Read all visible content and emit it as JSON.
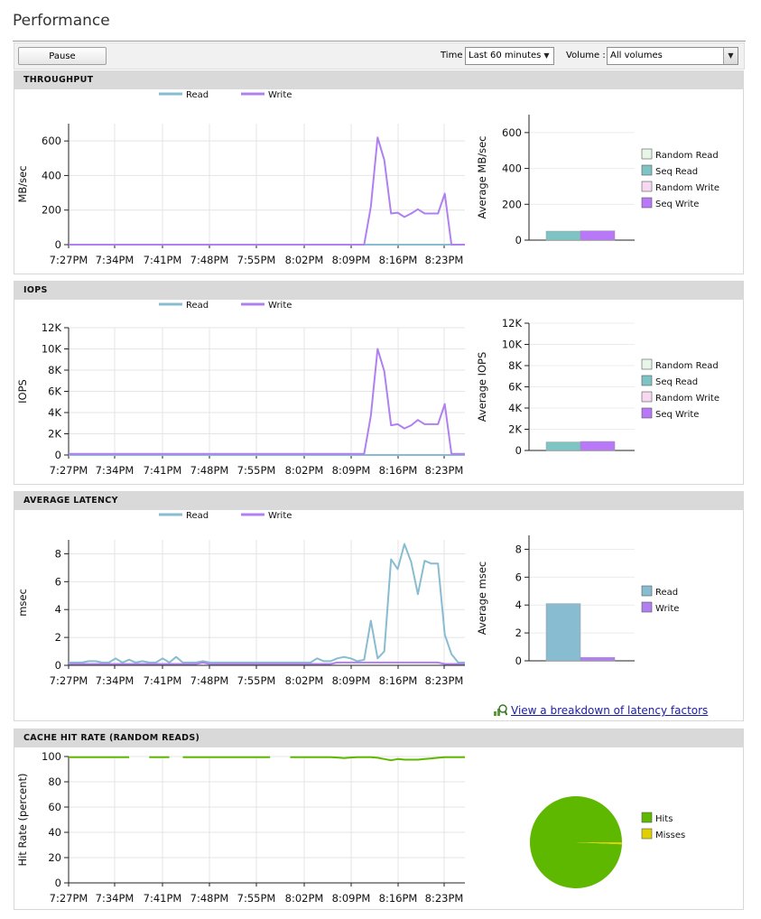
{
  "page_title": "Performance",
  "toolbar": {
    "pause_label": "Pause",
    "time_label": "Time",
    "time_value": "Last 60 minutes",
    "volume_label": "Volume :",
    "volume_value": "All volumes"
  },
  "x_ticks": [
    "7:27PM",
    "7:34PM",
    "7:41PM",
    "7:48PM",
    "7:55PM",
    "8:02PM",
    "8:09PM",
    "8:16PM",
    "8:23PM"
  ],
  "colors": {
    "read": "#88bcd0",
    "write": "#b080f0",
    "random_read": "#e8f6e8",
    "seq_read": "#7fc4c4",
    "random_write": "#f6d8f0",
    "seq_write": "#b878f8",
    "hits": "#5fb800",
    "misses": "#e0d000"
  },
  "breakdown_link": "View a breakdown of latency factors",
  "chart_data": [
    {
      "type": "line",
      "panel_title": "THROUGHPUT",
      "ylabel": "MB/sec",
      "ylim": [
        0,
        700
      ],
      "yticks": [
        0,
        200,
        400,
        600
      ],
      "ytick_labels": [
        "0",
        "200",
        "400",
        "600"
      ],
      "series": [
        {
          "name": "Read",
          "values": [
            0,
            0,
            0,
            0,
            0,
            0,
            0,
            0,
            0,
            0,
            0,
            0,
            0,
            0,
            0,
            0,
            0,
            0,
            0,
            0,
            0,
            0,
            0,
            0,
            0,
            0,
            0,
            0,
            0,
            0,
            0,
            0,
            0,
            0,
            0,
            0,
            0,
            0,
            0,
            0,
            0,
            0,
            0,
            0,
            0,
            0,
            0,
            0,
            0,
            0,
            0,
            0,
            0,
            0,
            0,
            0,
            0,
            0,
            0,
            0
          ]
        },
        {
          "name": "Write",
          "values": [
            0,
            0,
            0,
            0,
            0,
            0,
            0,
            0,
            0,
            0,
            0,
            0,
            0,
            0,
            0,
            0,
            0,
            0,
            0,
            0,
            0,
            0,
            0,
            0,
            0,
            0,
            0,
            0,
            0,
            0,
            0,
            0,
            0,
            0,
            0,
            0,
            0,
            0,
            0,
            0,
            0,
            0,
            0,
            0,
            0,
            220,
            620,
            490,
            180,
            185,
            160,
            180,
            205,
            180,
            180,
            180,
            295,
            0,
            0,
            0
          ]
        }
      ],
      "bar": {
        "ylabel": "Average MB/sec",
        "ylim": [
          0,
          700
        ],
        "yticks": [
          0,
          200,
          400,
          600
        ],
        "ytick_labels": [
          "0",
          "200",
          "400",
          "600"
        ],
        "bars": [
          {
            "key": "seq_read",
            "value": 50
          },
          {
            "key": "seq_write",
            "value": 52
          }
        ],
        "legend": [
          {
            "key": "random_read",
            "label": "Random Read"
          },
          {
            "key": "seq_read",
            "label": "Seq Read"
          },
          {
            "key": "random_write",
            "label": "Random Write"
          },
          {
            "key": "seq_write",
            "label": "Seq Write"
          }
        ]
      }
    },
    {
      "type": "line",
      "panel_title": "IOPS",
      "ylabel": "IOPS",
      "ylim": [
        0,
        12000
      ],
      "yticks": [
        0,
        2000,
        4000,
        6000,
        8000,
        10000,
        12000
      ],
      "ytick_labels": [
        "0",
        "2K",
        "4K",
        "6K",
        "8K",
        "10K",
        "12K"
      ],
      "series": [
        {
          "name": "Read",
          "values": [
            0,
            0,
            0,
            0,
            0,
            0,
            0,
            0,
            0,
            0,
            0,
            0,
            0,
            0,
            0,
            0,
            0,
            0,
            0,
            0,
            0,
            0,
            0,
            0,
            0,
            0,
            0,
            0,
            0,
            0,
            0,
            0,
            0,
            0,
            0,
            0,
            0,
            0,
            0,
            0,
            0,
            0,
            0,
            0,
            0,
            0,
            0,
            0,
            0,
            0,
            0,
            0,
            0,
            0,
            0,
            0,
            0,
            0,
            0,
            0
          ]
        },
        {
          "name": "Write",
          "values": [
            100,
            100,
            100,
            100,
            100,
            100,
            100,
            100,
            100,
            100,
            100,
            100,
            100,
            100,
            100,
            100,
            100,
            100,
            100,
            100,
            100,
            100,
            100,
            100,
            100,
            100,
            100,
            100,
            100,
            100,
            100,
            100,
            100,
            100,
            100,
            100,
            100,
            100,
            100,
            100,
            100,
            100,
            100,
            100,
            100,
            3700,
            10000,
            7900,
            2800,
            2900,
            2500,
            2800,
            3300,
            2900,
            2900,
            2900,
            4800,
            100,
            100,
            100
          ]
        }
      ],
      "bar": {
        "ylabel": "Average IOPS",
        "ylim": [
          0,
          12000
        ],
        "yticks": [
          0,
          2000,
          4000,
          6000,
          8000,
          10000,
          12000
        ],
        "ytick_labels": [
          "0",
          "2K",
          "4K",
          "6K",
          "8K",
          "10K",
          "12K"
        ],
        "bars": [
          {
            "key": "seq_read",
            "value": 800
          },
          {
            "key": "seq_write",
            "value": 850
          }
        ],
        "legend": [
          {
            "key": "random_read",
            "label": "Random Read"
          },
          {
            "key": "seq_read",
            "label": "Seq Read"
          },
          {
            "key": "random_write",
            "label": "Random Write"
          },
          {
            "key": "seq_write",
            "label": "Seq Write"
          }
        ]
      }
    },
    {
      "type": "line",
      "panel_title": "AVERAGE LATENCY",
      "ylabel": "msec",
      "ylim": [
        0,
        9
      ],
      "yticks": [
        0,
        2,
        4,
        6,
        8
      ],
      "ytick_labels": [
        "0",
        "2",
        "4",
        "6",
        "8"
      ],
      "series": [
        {
          "name": "Read",
          "values": [
            0.2,
            0.2,
            0.2,
            0.3,
            0.3,
            0.2,
            0.2,
            0.5,
            0.2,
            0.4,
            0.2,
            0.3,
            0.2,
            0.2,
            0.5,
            0.2,
            0.6,
            0.2,
            0.2,
            0.2,
            0.3,
            0.2,
            0.2,
            0.2,
            0.2,
            0.2,
            0.2,
            0.2,
            0.2,
            0.2,
            0.2,
            0.2,
            0.2,
            0.2,
            0.2,
            0.2,
            0.2,
            0.5,
            0.3,
            0.3,
            0.5,
            0.6,
            0.5,
            0.3,
            0.4,
            3.2,
            0.5,
            1.0,
            7.6,
            6.9,
            8.7,
            7.4,
            5.1,
            7.5,
            7.3,
            7.3,
            2.2,
            0.8,
            0.2,
            0.2
          ]
        },
        {
          "name": "Write",
          "values": [
            0.1,
            0.1,
            0.1,
            0.1,
            0.1,
            0.1,
            0.1,
            0.1,
            0.1,
            0.1,
            0.1,
            0.1,
            0.1,
            0.1,
            0.1,
            0.1,
            0.1,
            0.1,
            0.1,
            0.1,
            0.2,
            0.1,
            0.1,
            0.1,
            0.1,
            0.1,
            0.1,
            0.1,
            0.1,
            0.1,
            0.1,
            0.1,
            0.1,
            0.1,
            0.1,
            0.1,
            0.1,
            0.1,
            0.1,
            0.1,
            0.2,
            0.2,
            0.2,
            0.2,
            0.2,
            0.2,
            0.2,
            0.2,
            0.2,
            0.2,
            0.2,
            0.2,
            0.2,
            0.2,
            0.2,
            0.2,
            0.1,
            0.1,
            0.1,
            0.1
          ]
        }
      ],
      "bar": {
        "ylabel": "Average msec",
        "ylim": [
          0,
          9
        ],
        "yticks": [
          0,
          2,
          4,
          6,
          8
        ],
        "ytick_labels": [
          "0",
          "2",
          "4",
          "6",
          "8"
        ],
        "bars": [
          {
            "key": "read",
            "value": 4.1
          },
          {
            "key": "write",
            "value": 0.25
          }
        ],
        "legend": [
          {
            "key": "read",
            "label": "Read"
          },
          {
            "key": "write",
            "label": "Write"
          }
        ]
      }
    },
    {
      "type": "line",
      "panel_title": "CACHE HIT RATE (RANDOM READS)",
      "ylabel": "Hit Rate (percent)",
      "ylim": [
        0,
        100
      ],
      "yticks": [
        0,
        20,
        40,
        60,
        80,
        100
      ],
      "ytick_labels": [
        "0",
        "20",
        "40",
        "60",
        "80",
        "100"
      ],
      "series": [
        {
          "name": "Hits",
          "values": [
            99.5,
            99.5,
            99.5,
            99.5,
            99.5,
            99.5,
            99.5,
            99.5,
            99.5,
            99.5,
            null,
            null,
            99.5,
            99.5,
            99.5,
            99.5,
            null,
            99.5,
            99.5,
            99.5,
            99.5,
            99.5,
            99.5,
            99.5,
            99.5,
            99.5,
            99.5,
            99.5,
            99.5,
            99.5,
            99.5,
            null,
            null,
            99.5,
            99.5,
            99.5,
            99.5,
            99.5,
            99.5,
            99.5,
            99.2,
            98.8,
            99.2,
            99.5,
            99.5,
            99.5,
            99.0,
            98.0,
            97.0,
            98.0,
            97.5,
            97.5,
            97.5,
            98.0,
            98.5,
            99.0,
            99.5,
            99.5,
            99.5,
            99.5
          ]
        }
      ],
      "pie": {
        "slices": [
          {
            "key": "hits",
            "label": "Hits",
            "value": 99.3
          },
          {
            "key": "misses",
            "label": "Misses",
            "value": 0.7
          }
        ]
      }
    }
  ]
}
